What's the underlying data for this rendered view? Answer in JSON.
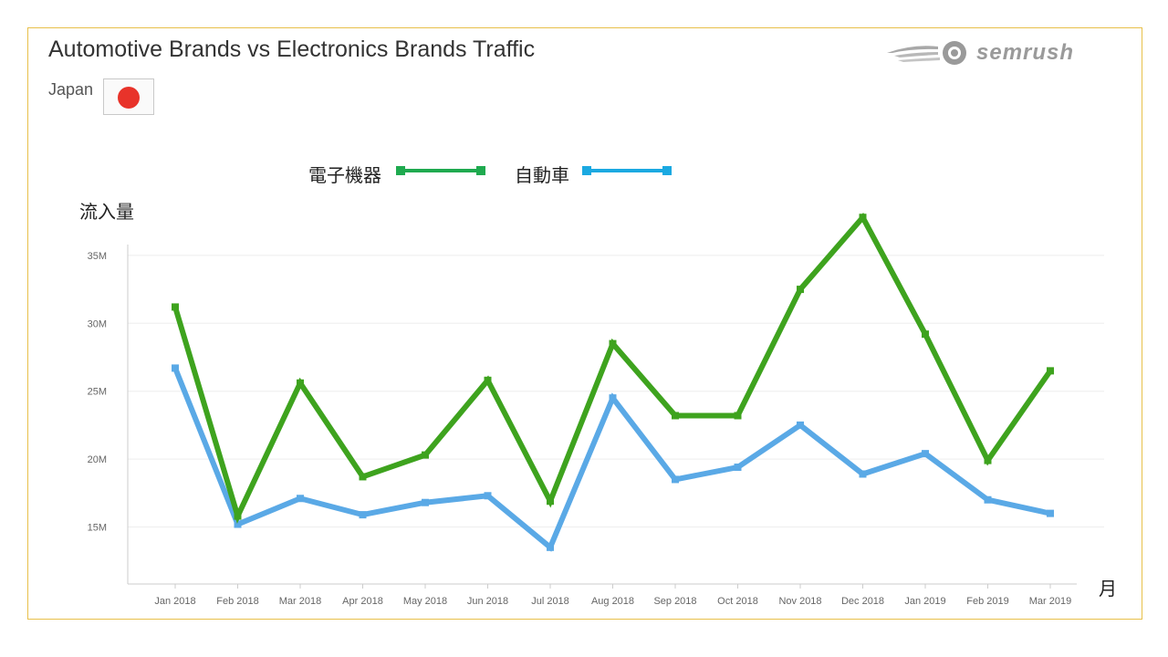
{
  "header": {
    "title": "Automotive Brands vs Electronics Brands Traffic",
    "country": "Japan",
    "logo_text": "semrush",
    "logo_icon": "semrush-fireball-icon",
    "flag_icon": "japan-flag-icon"
  },
  "legend": {
    "items": [
      {
        "label": "電子機器",
        "color": "#3ea31e"
      },
      {
        "label": "自動車",
        "color": "#5aa9e6"
      }
    ]
  },
  "chart_data": {
    "type": "line",
    "title": "Automotive Brands vs Electronics Brands Traffic",
    "ylabel": "流入量",
    "xlabel": "月",
    "categories": [
      "Jan 2018",
      "Feb 2018",
      "Mar 2018",
      "Apr 2018",
      "May 2018",
      "Jun 2018",
      "Jul 2018",
      "Aug 2018",
      "Sep 2018",
      "Oct 2018",
      "Nov 2018",
      "Dec 2018",
      "Jan 2019",
      "Feb 2019",
      "Mar 2019"
    ],
    "y_ticks": [
      "35M",
      "30M",
      "25M",
      "20M",
      "15M"
    ],
    "y_tick_values": [
      35,
      30,
      25,
      20,
      15
    ],
    "ylim": [
      10.8,
      35.8
    ],
    "grid": true,
    "legend_position": "top-center",
    "series": [
      {
        "name": "電子機器",
        "color": "#3ea31e",
        "values": [
          31.2,
          15.8,
          25.6,
          18.7,
          20.3,
          25.8,
          16.9,
          28.5,
          23.2,
          23.2,
          32.5,
          37.8,
          29.2,
          19.9,
          26.5
        ]
      },
      {
        "name": "自動車",
        "color": "#5aa9e6",
        "values": [
          26.7,
          15.2,
          17.1,
          15.9,
          16.8,
          17.3,
          13.5,
          24.5,
          18.5,
          19.4,
          22.5,
          18.9,
          20.4,
          17.0,
          16.0
        ]
      }
    ]
  }
}
